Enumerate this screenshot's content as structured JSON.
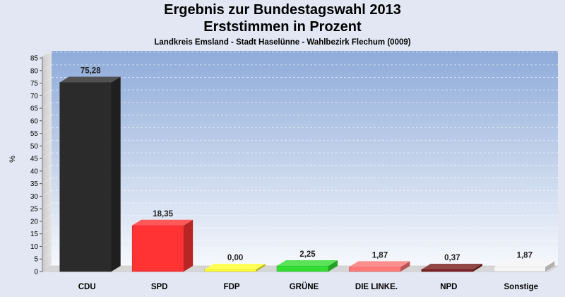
{
  "chart_data": {
    "type": "bar",
    "title": "Ergebnis zur Bundestagswahl 2013",
    "title2": "Erststimmen in Prozent",
    "subtitle": "Landkreis Emsland - Stadt Haselünne - Wahlbezirk Flechum (0009)",
    "ylabel": "%",
    "ylim": [
      0,
      85
    ],
    "ytick_step": 5,
    "grid": true,
    "categories": [
      "CDU",
      "SPD",
      "FDP",
      "GRÜNE",
      "DIE LINKE.",
      "NPD",
      "Sonstige"
    ],
    "values": [
      75.28,
      18.35,
      0.0,
      2.25,
      1.87,
      0.37,
      1.87
    ],
    "value_labels": [
      "75,28",
      "18,35",
      "0,00",
      "2,25",
      "1,87",
      "0,37",
      "1,87"
    ],
    "colors": [
      "#2b2b2b",
      "#ff3333",
      "#ffff33",
      "#33dd33",
      "#ff7777",
      "#7a1f1f",
      "#f4f4f4"
    ]
  }
}
